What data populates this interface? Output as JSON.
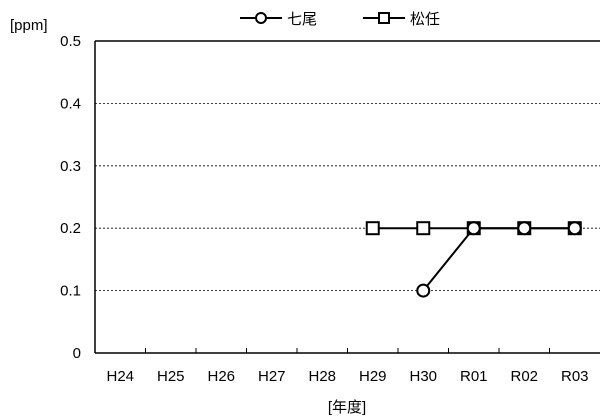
{
  "chart_data": {
    "type": "line",
    "categories": [
      "H24",
      "H25",
      "H26",
      "H27",
      "H28",
      "H29",
      "H30",
      "R01",
      "R02",
      "R03"
    ],
    "series": [
      {
        "name": "七尾",
        "marker": "circle",
        "values": [
          null,
          null,
          null,
          null,
          null,
          null,
          0.1,
          0.2,
          0.2,
          0.2
        ]
      },
      {
        "name": "松任",
        "marker": "square",
        "values": [
          null,
          null,
          null,
          null,
          null,
          0.2,
          0.2,
          0.2,
          0.2,
          0.2
        ]
      }
    ],
    "ylabel": "[ppm]",
    "xlabel": "[年度]",
    "ylim": [
      0,
      0.5
    ],
    "yticks": [
      "0",
      "0.1",
      "0.2",
      "0.3",
      "0.4",
      "0.5"
    ],
    "grid": "horizontal dotted",
    "legend_position": "top-center",
    "colors": {
      "line": "#000000",
      "marker_fill": "#ffffff",
      "grid": "#000000"
    }
  }
}
